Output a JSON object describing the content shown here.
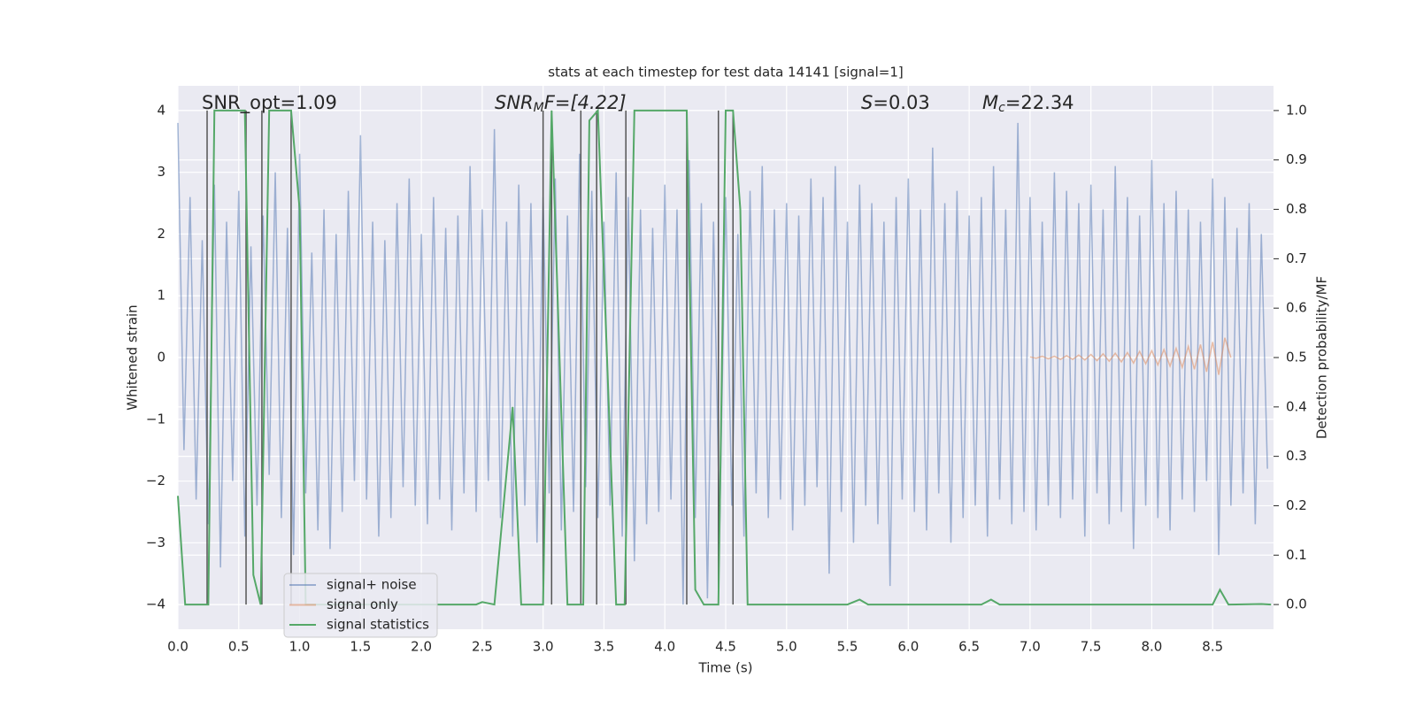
{
  "chart_data": {
    "type": "line",
    "title": "stats at each timestep for test data 14141 [signal=1]",
    "xlabel": "Time (s)",
    "ylabel": "Whitened strain",
    "y2label": "Detection probability/MF",
    "annotations": [
      {
        "text": "SNR_opt=1.09"
      },
      {
        "base": "SNR",
        "sub": "M",
        "tail": "F=[4.22]"
      },
      {
        "base": "S",
        "tail": "=0.03"
      },
      {
        "base": "M",
        "sub": "c",
        "tail": "=22.34"
      }
    ],
    "xlim": [
      0,
      9.0
    ],
    "ylim": [
      -4.4,
      4.4
    ],
    "y2lim": [
      -0.05,
      1.05
    ],
    "xticks": [
      {
        "value": 0,
        "label": "0.0"
      },
      0.5,
      {
        "value": 1,
        "label": "1.0"
      },
      1.5,
      {
        "value": 2,
        "label": "2.0"
      },
      2.5,
      {
        "value": 3,
        "label": "3.0"
      },
      3.5,
      {
        "value": 4,
        "label": "4.0"
      },
      4.5,
      {
        "value": 5,
        "label": "5.0"
      },
      5.5,
      {
        "value": 6,
        "label": "6.0"
      },
      6.5,
      {
        "value": 7,
        "label": "7.0"
      },
      7.5,
      {
        "value": 8,
        "label": "8.0"
      },
      8.5
    ],
    "yticks": [
      {
        "value": -4,
        "label": "−4"
      },
      {
        "value": -3,
        "label": "−3"
      },
      {
        "value": -2,
        "label": "−2"
      },
      {
        "value": -1,
        "label": "−1"
      },
      0,
      1,
      2,
      3,
      4
    ],
    "y2ticks": [
      {
        "value": 0,
        "label": "0.0"
      },
      0.1,
      0.2,
      0.3,
      0.4,
      0.5,
      0.6,
      0.7,
      0.8,
      0.9,
      {
        "value": 1,
        "label": "1.0"
      }
    ],
    "grid": true,
    "vlines": [
      0.24,
      0.56,
      0.69,
      0.93,
      3.0,
      3.07,
      3.31,
      3.44,
      3.68,
      4.18,
      4.44,
      4.56
    ],
    "vline_color": "#555555",
    "series": [
      {
        "name": "signal+ noise",
        "color": "#4c72b0",
        "x": [
          0,
          0.05,
          0.1,
          0.15,
          0.2,
          0.25,
          0.3,
          0.35,
          0.4,
          0.45,
          0.5,
          0.55,
          0.6,
          0.65,
          0.7,
          0.75,
          0.8,
          0.85,
          0.9,
          0.95,
          1,
          1.05,
          1.1,
          1.15,
          1.2,
          1.25,
          1.3,
          1.35,
          1.4,
          1.45,
          1.5,
          1.55,
          1.6,
          1.65,
          1.7,
          1.75,
          1.8,
          1.85,
          1.9,
          1.95,
          2,
          2.05,
          2.1,
          2.15,
          2.2,
          2.25,
          2.3,
          2.35,
          2.4,
          2.45,
          2.5,
          2.55,
          2.6,
          2.65,
          2.7,
          2.75,
          2.8,
          2.85,
          2.9,
          2.95,
          3,
          3.05,
          3.1,
          3.15,
          3.2,
          3.25,
          3.3,
          3.35,
          3.4,
          3.45,
          3.5,
          3.55,
          3.6,
          3.65,
          3.7,
          3.75,
          3.8,
          3.85,
          3.9,
          3.95,
          4,
          4.05,
          4.1,
          4.15,
          4.2,
          4.25,
          4.3,
          4.35,
          4.4,
          4.45,
          4.5,
          4.55,
          4.6,
          4.65,
          4.7,
          4.75,
          4.8,
          4.85,
          4.9,
          4.95,
          5,
          5.05,
          5.1,
          5.15,
          5.2,
          5.25,
          5.3,
          5.35,
          5.4,
          5.45,
          5.5,
          5.55,
          5.6,
          5.65,
          5.7,
          5.75,
          5.8,
          5.85,
          5.9,
          5.95,
          6,
          6.05,
          6.1,
          6.15,
          6.2,
          6.25,
          6.3,
          6.35,
          6.4,
          6.45,
          6.5,
          6.55,
          6.6,
          6.65,
          6.7,
          6.75,
          6.8,
          6.85,
          6.9,
          6.95,
          7,
          7.05,
          7.1,
          7.15,
          7.2,
          7.25,
          7.3,
          7.35,
          7.4,
          7.45,
          7.5,
          7.55,
          7.6,
          7.65,
          7.7,
          7.75,
          7.8,
          7.85,
          7.9,
          7.95,
          8,
          8.05,
          8.1,
          8.15,
          8.2,
          8.25,
          8.3,
          8.35,
          8.4,
          8.45,
          8.5,
          8.55,
          8.6,
          8.65,
          8.7,
          8.75,
          8.8,
          8.85,
          8.9,
          8.95
        ],
        "values": [
          3.8,
          -1.5,
          2.6,
          -2.3,
          1.9,
          -2.7,
          2.8,
          -3.4,
          2.2,
          -2.0,
          2.7,
          -2.9,
          1.8,
          -2.4,
          2.3,
          -1.9,
          3.0,
          -2.6,
          2.1,
          -3.2,
          3.3,
          -2.2,
          1.7,
          -2.8,
          2.4,
          -3.1,
          2.0,
          -2.5,
          2.7,
          -2.0,
          3.6,
          -2.3,
          2.2,
          -2.9,
          1.9,
          -2.6,
          2.5,
          -2.1,
          2.9,
          -2.4,
          2.0,
          -2.7,
          2.6,
          -2.3,
          2.1,
          -2.8,
          2.3,
          -2.2,
          3.1,
          -2.5,
          2.4,
          -2.0,
          3.7,
          -2.6,
          2.2,
          -2.9,
          2.8,
          -2.4,
          2.5,
          -3.0,
          2.6,
          -2.2,
          2.9,
          -2.8,
          2.3,
          -2.5,
          3.3,
          -2.1,
          2.7,
          -2.6,
          2.2,
          -2.4,
          3.0,
          -2.9,
          2.6,
          -3.3,
          2.4,
          -2.7,
          2.1,
          -2.5,
          2.8,
          -2.3,
          2.4,
          -4.0,
          3.2,
          -2.6,
          2.5,
          -3.9,
          2.2,
          -2.8,
          2.6,
          -2.4,
          2.0,
          -2.9,
          2.7,
          -2.2,
          3.1,
          -2.6,
          2.4,
          -2.3,
          2.5,
          -2.8,
          2.3,
          -2.4,
          2.9,
          -2.1,
          2.6,
          -3.5,
          3.1,
          -2.5,
          2.2,
          -3.0,
          2.8,
          -2.4,
          2.5,
          -2.7,
          2.2,
          -3.7,
          2.6,
          -2.3,
          2.9,
          -2.5,
          2.4,
          -2.8,
          3.4,
          -2.2,
          2.5,
          -3.0,
          2.7,
          -2.6,
          2.3,
          -2.4,
          2.6,
          -2.9,
          3.1,
          -2.3,
          2.4,
          -2.7,
          3.8,
          -2.5,
          2.6,
          -2.8,
          2.2,
          -2.4,
          3.0,
          -2.6,
          2.7,
          -2.3,
          2.5,
          -2.9,
          2.8,
          -2.2,
          2.4,
          -2.7,
          3.1,
          -2.5,
          2.6,
          -3.1,
          2.3,
          -2.4,
          3.2,
          -2.6,
          2.5,
          -2.8,
          2.7,
          -2.3,
          2.4,
          -2.5,
          2.2,
          -2.0,
          2.9,
          -3.2,
          2.6,
          -2.4,
          2.1,
          -2.2,
          2.5,
          -2.7,
          2.0,
          -1.8
        ]
      },
      {
        "name": "signal only",
        "color": "#dd8452",
        "x": [
          7,
          7.05,
          7.1,
          7.15,
          7.2,
          7.25,
          7.3,
          7.35,
          7.4,
          7.45,
          7.5,
          7.55,
          7.6,
          7.65,
          7.7,
          7.75,
          7.8,
          7.85,
          7.9,
          7.95,
          8,
          8.05,
          8.1,
          8.15,
          8.2,
          8.25,
          8.3,
          8.35,
          8.4,
          8.45,
          8.5,
          8.55,
          8.6,
          8.65
        ],
        "values": [
          0.01,
          -0.01,
          0.02,
          -0.02,
          0.02,
          -0.03,
          0.03,
          -0.03,
          0.04,
          -0.04,
          0.05,
          -0.05,
          0.06,
          -0.06,
          0.07,
          -0.07,
          0.08,
          -0.09,
          0.1,
          -0.1,
          0.11,
          -0.12,
          0.13,
          -0.14,
          0.15,
          -0.16,
          0.18,
          -0.19,
          0.21,
          -0.23,
          0.25,
          -0.28,
          0.32,
          0
        ]
      },
      {
        "name": "signal statistics",
        "color": "#55a868",
        "axis": "y2",
        "x": [
          0,
          0.06,
          0.25,
          0.3,
          0.55,
          0.62,
          0.68,
          0.75,
          0.93,
          1.0,
          1.05,
          2.45,
          2.5,
          2.6,
          2.75,
          2.82,
          3.0,
          3.07,
          3.2,
          3.33,
          3.38,
          3.45,
          3.6,
          3.67,
          3.75,
          4.18,
          4.25,
          4.32,
          4.44,
          4.5,
          4.56,
          4.62,
          4.68,
          5.5,
          5.6,
          5.67,
          6.6,
          6.68,
          6.75,
          8.5,
          8.56,
          8.63,
          8.9,
          8.98
        ],
        "values": [
          0.22,
          0,
          0,
          1,
          1,
          0.06,
          0,
          1,
          1,
          0.8,
          0,
          0,
          0.005,
          0,
          0.4,
          0,
          0,
          1,
          0,
          0,
          0.98,
          1,
          0,
          0,
          1,
          1,
          0.03,
          0,
          0,
          1,
          1,
          0.8,
          0,
          0,
          0.01,
          0,
          0,
          0.01,
          0,
          0,
          0.03,
          0,
          0.001,
          0
        ]
      }
    ]
  }
}
